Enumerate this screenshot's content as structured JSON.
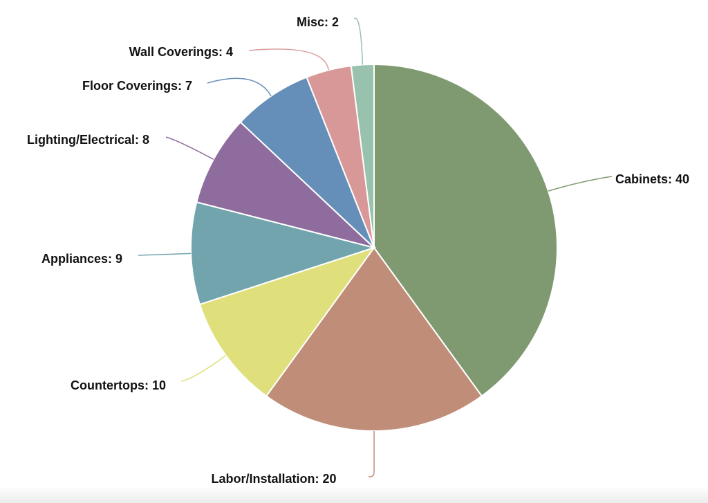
{
  "chart_data": {
    "type": "pie",
    "title": "",
    "start_angle": "top",
    "direction": "clockwise",
    "slices": [
      {
        "label": "Cabinets",
        "value": 40,
        "text": "Cabinets: 40",
        "color": "#7f9a71"
      },
      {
        "label": "Labor/Installation",
        "value": 20,
        "text": "Labor/Installation: 20",
        "color": "#bf8d78"
      },
      {
        "label": "Countertops",
        "value": 10,
        "text": "Countertops: 10",
        "color": "#dfe07b"
      },
      {
        "label": "Appliances",
        "value": 9,
        "text": "Appliances: 9",
        "color": "#71a4ad"
      },
      {
        "label": "Lighting/Electrical",
        "value": 8,
        "text": "Lighting/Electrical: 8",
        "color": "#8e6c9d"
      },
      {
        "label": "Floor Coverings",
        "value": 7,
        "text": "Floor Coverings: 7",
        "color": "#658fb8"
      },
      {
        "label": "Wall Coverings",
        "value": 4,
        "text": "Wall Coverings: 4",
        "color": "#d99898"
      },
      {
        "label": "Misc",
        "value": 2,
        "text": "Misc: 2",
        "color": "#98c2ae"
      }
    ],
    "legend": "none"
  }
}
